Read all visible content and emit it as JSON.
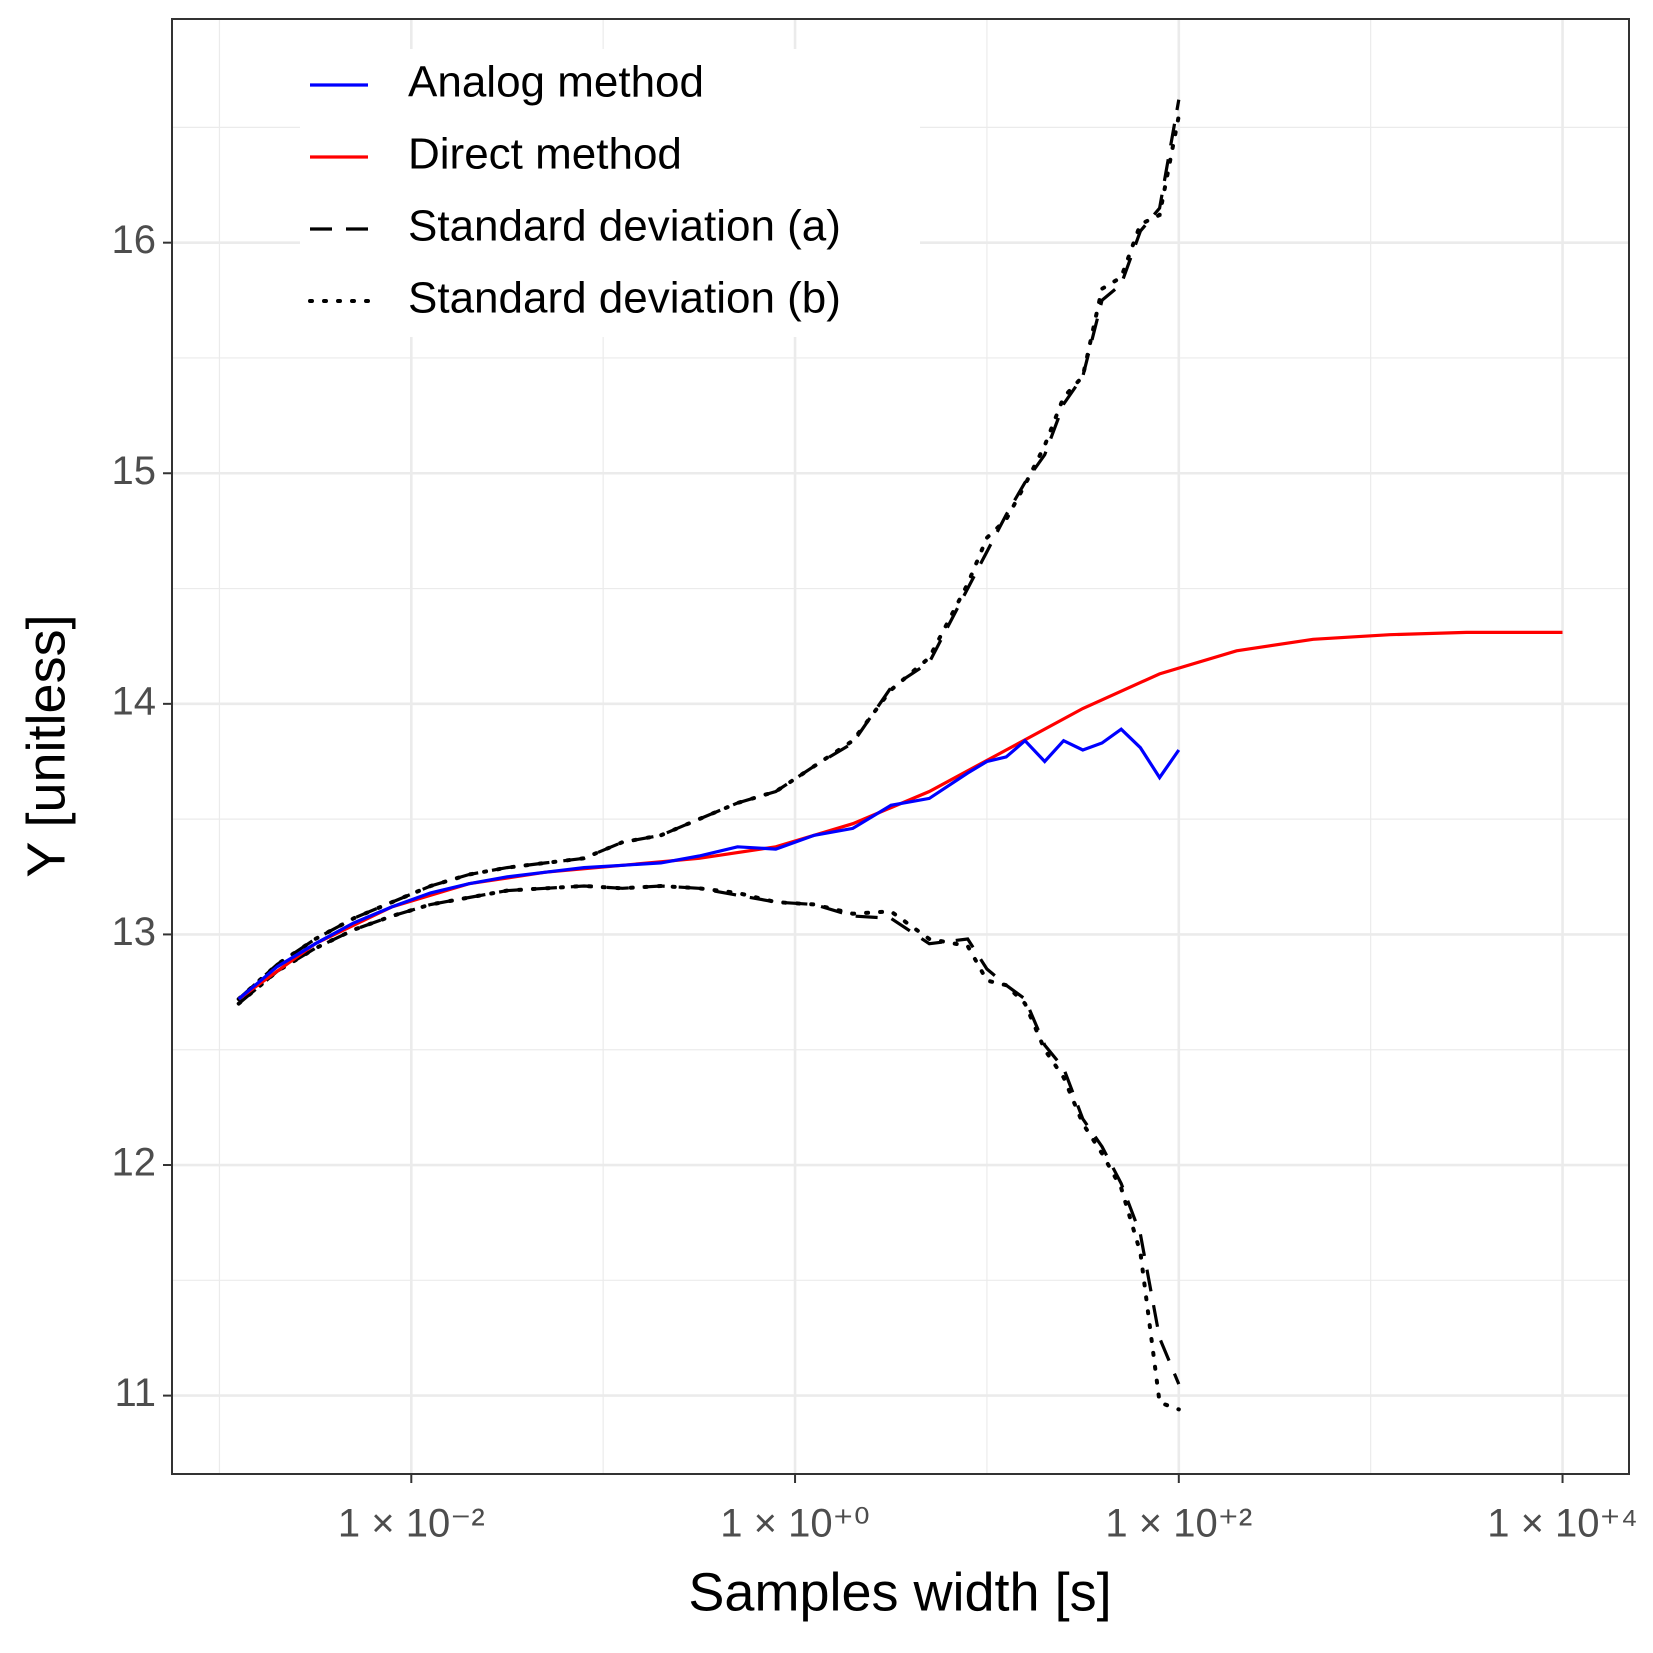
{
  "chart_data": {
    "type": "line",
    "xlabel": "Samples width [s]",
    "ylabel": "Y [unitless]",
    "xscale": "log",
    "grid": true,
    "xlim": [
      0.000566,
      22200
    ],
    "ylim": [
      10.66,
      16.97
    ],
    "xticks": [
      {
        "value": 0.01,
        "label": "1 × 10⁻²"
      },
      {
        "value": 1,
        "label": "1 × 10⁺⁰"
      },
      {
        "value": 100,
        "label": "1 × 10⁺²"
      },
      {
        "value": 10000,
        "label": "1 × 10⁺⁴"
      }
    ],
    "xminorticks": [
      0.001,
      0.1,
      10,
      1000
    ],
    "yticks": [
      11,
      12,
      13,
      14,
      15,
      16
    ],
    "yminorticks": [
      11.5,
      12.5,
      13.5,
      14.5,
      15.5,
      16.5
    ],
    "legend": "top-left",
    "series": [
      {
        "name": "Analog method",
        "color": "#0000ff",
        "dash": "solid",
        "x": [
          0.00126,
          0.002,
          0.00316,
          0.00501,
          0.00794,
          0.0126,
          0.02,
          0.0316,
          0.0501,
          0.0794,
          0.126,
          0.2,
          0.316,
          0.501,
          0.794,
          1.26,
          2,
          3.16,
          5.01,
          7.94,
          10,
          12.6,
          15.8,
          20,
          25.1,
          31.6,
          39.8,
          50.1,
          63.1,
          79.4,
          100
        ],
        "values": [
          12.72,
          12.86,
          12.96,
          13.05,
          13.12,
          13.18,
          13.22,
          13.25,
          13.27,
          13.29,
          13.3,
          13.31,
          13.34,
          13.38,
          13.37,
          13.43,
          13.46,
          13.56,
          13.59,
          13.7,
          13.75,
          13.77,
          13.84,
          13.75,
          13.84,
          13.8,
          13.83,
          13.89,
          13.81,
          13.68,
          13.8
        ]
      },
      {
        "name": "Direct method",
        "color": "#ff0000",
        "dash": "solid",
        "x": [
          0.00126,
          0.00316,
          0.00794,
          0.02,
          0.0501,
          0.126,
          0.316,
          0.794,
          2,
          5.01,
          12.6,
          31.6,
          79.4,
          200,
          501,
          1260,
          3160,
          10000
        ],
        "values": [
          12.72,
          12.96,
          13.12,
          13.22,
          13.27,
          13.3,
          13.33,
          13.38,
          13.48,
          13.62,
          13.8,
          13.98,
          14.13,
          14.23,
          14.28,
          14.3,
          14.31,
          14.31
        ]
      },
      {
        "name": "Standard deviation (a)",
        "color": "#000000",
        "dash": "dashed",
        "x": [
          0.00126,
          0.002,
          0.00316,
          0.00501,
          0.00794,
          0.0126,
          0.02,
          0.0316,
          0.0501,
          0.0794,
          0.126,
          0.2,
          0.316,
          0.501,
          0.794,
          1.26,
          2,
          3.16,
          5.01,
          7.94,
          10,
          12.6,
          15.8,
          20,
          25.1,
          31.6,
          39.8,
          50.1,
          63.1,
          79.4,
          100
        ],
        "values": [
          12.72,
          12.87,
          12.98,
          13.07,
          13.14,
          13.21,
          13.26,
          13.29,
          13.31,
          13.33,
          13.4,
          13.43,
          13.5,
          13.57,
          13.62,
          13.73,
          13.83,
          14.07,
          14.18,
          14.5,
          14.66,
          14.82,
          14.96,
          15.08,
          15.3,
          15.42,
          15.75,
          15.82,
          16.05,
          16.15,
          16.62
        ],
        "lower": [
          12.7,
          12.84,
          12.94,
          13.02,
          13.08,
          13.13,
          13.16,
          13.19,
          13.2,
          13.21,
          13.2,
          13.21,
          13.2,
          13.17,
          13.14,
          13.13,
          13.08,
          13.07,
          12.96,
          12.98,
          12.85,
          12.78,
          12.72,
          12.52,
          12.42,
          12.2,
          12.08,
          11.92,
          11.7,
          11.25,
          11.05
        ]
      },
      {
        "name": "Standard deviation (b)",
        "color": "#000000",
        "dash": "dotted",
        "x": [
          0.00126,
          0.002,
          0.00316,
          0.00501,
          0.00794,
          0.0126,
          0.02,
          0.0316,
          0.0501,
          0.0794,
          0.126,
          0.2,
          0.316,
          0.501,
          0.794,
          1.26,
          2,
          3.16,
          5.01,
          7.94,
          10,
          12.6,
          15.8,
          20,
          25.1,
          31.6,
          39.8,
          50.1,
          63.1,
          79.4,
          100
        ],
        "values": [
          12.72,
          12.87,
          12.98,
          13.07,
          13.14,
          13.21,
          13.26,
          13.29,
          13.31,
          13.33,
          13.4,
          13.43,
          13.5,
          13.57,
          13.62,
          13.73,
          13.84,
          14.06,
          14.2,
          14.52,
          14.72,
          14.8,
          14.95,
          15.12,
          15.33,
          15.42,
          15.8,
          15.85,
          16.08,
          16.12,
          16.55
        ],
        "lower": [
          12.7,
          12.84,
          12.94,
          13.02,
          13.08,
          13.13,
          13.16,
          13.19,
          13.2,
          13.21,
          13.2,
          13.21,
          13.2,
          13.18,
          13.14,
          13.13,
          13.09,
          13.1,
          12.98,
          12.95,
          12.8,
          12.78,
          12.7,
          12.5,
          12.38,
          12.18,
          12.05,
          11.9,
          11.62,
          10.97,
          10.94
        ]
      }
    ]
  }
}
